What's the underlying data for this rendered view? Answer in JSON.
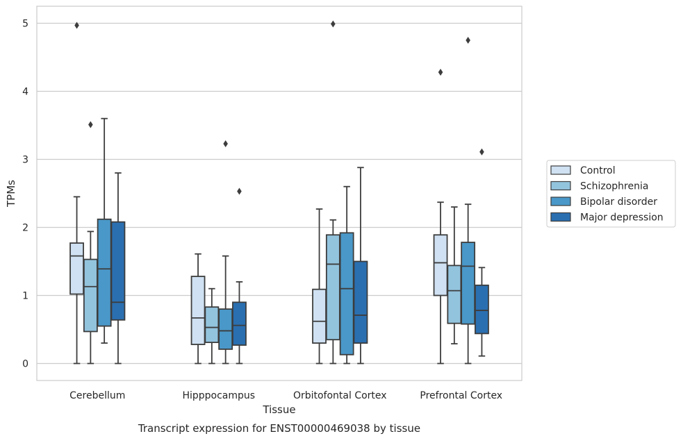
{
  "chart_data": {
    "type": "box",
    "caption": "Transcript expression for ENST00000469038 by tissue",
    "xlabel": "Tissue",
    "ylabel": "TPMs",
    "ylim": [
      -0.25,
      5.25
    ],
    "yticks": [
      0,
      1,
      2,
      3,
      4,
      5
    ],
    "grid": "horizontal",
    "legend_position": "right",
    "categories": [
      "Cerebellum",
      "Hipppocampus",
      "Orbitofontal Cortex",
      "Prefrontal Cortex"
    ],
    "series": [
      {
        "name": "Control",
        "color": "#cfe1f2",
        "boxes": [
          {
            "whisker_low": 0.0,
            "q1": 1.02,
            "median": 1.58,
            "q3": 1.77,
            "whisker_high": 2.45,
            "outliers": [
              4.97
            ]
          },
          {
            "whisker_low": 0.0,
            "q1": 0.28,
            "median": 0.67,
            "q3": 1.28,
            "whisker_high": 1.61,
            "outliers": []
          },
          {
            "whisker_low": 0.0,
            "q1": 0.3,
            "median": 0.62,
            "q3": 1.09,
            "whisker_high": 2.27,
            "outliers": []
          },
          {
            "whisker_low": 0.0,
            "q1": 1.0,
            "median": 1.48,
            "q3": 1.89,
            "whisker_high": 2.37,
            "outliers": [
              4.28
            ]
          }
        ]
      },
      {
        "name": "Schizophrenia",
        "color": "#93c4de",
        "boxes": [
          {
            "whisker_low": 0.0,
            "q1": 0.47,
            "median": 1.13,
            "q3": 1.53,
            "whisker_high": 1.94,
            "outliers": [
              3.51
            ]
          },
          {
            "whisker_low": 0.0,
            "q1": 0.31,
            "median": 0.53,
            "q3": 0.83,
            "whisker_high": 1.1,
            "outliers": []
          },
          {
            "whisker_low": 0.0,
            "q1": 0.35,
            "median": 1.46,
            "q3": 1.89,
            "whisker_high": 2.11,
            "outliers": [
              4.99
            ]
          },
          {
            "whisker_low": 0.29,
            "q1": 0.59,
            "median": 1.07,
            "q3": 1.44,
            "whisker_high": 2.3,
            "outliers": []
          }
        ]
      },
      {
        "name": "Bipolar disorder",
        "color": "#4a98c9",
        "boxes": [
          {
            "whisker_low": 0.3,
            "q1": 0.55,
            "median": 1.39,
            "q3": 2.12,
            "whisker_high": 3.6,
            "outliers": []
          },
          {
            "whisker_low": 0.0,
            "q1": 0.21,
            "median": 0.48,
            "q3": 0.8,
            "whisker_high": 1.58,
            "outliers": [
              3.23
            ]
          },
          {
            "whisker_low": 0.0,
            "q1": 0.13,
            "median": 1.1,
            "q3": 1.92,
            "whisker_high": 2.6,
            "outliers": []
          },
          {
            "whisker_low": 0.0,
            "q1": 0.58,
            "median": 1.43,
            "q3": 1.78,
            "whisker_high": 2.34,
            "outliers": [
              4.75
            ]
          }
        ]
      },
      {
        "name": "Major depression",
        "color": "#2a6fb0",
        "boxes": [
          {
            "whisker_low": 0.0,
            "q1": 0.64,
            "median": 0.9,
            "q3": 2.08,
            "whisker_high": 2.8,
            "outliers": []
          },
          {
            "whisker_low": 0.0,
            "q1": 0.27,
            "median": 0.56,
            "q3": 0.9,
            "whisker_high": 1.2,
            "outliers": [
              2.53
            ]
          },
          {
            "whisker_low": 0.0,
            "q1": 0.3,
            "median": 0.71,
            "q3": 1.5,
            "whisker_high": 2.88,
            "outliers": []
          },
          {
            "whisker_low": 0.11,
            "q1": 0.44,
            "median": 0.78,
            "q3": 1.15,
            "whisker_high": 1.41,
            "outliers": [
              3.11
            ]
          }
        ]
      }
    ]
  }
}
